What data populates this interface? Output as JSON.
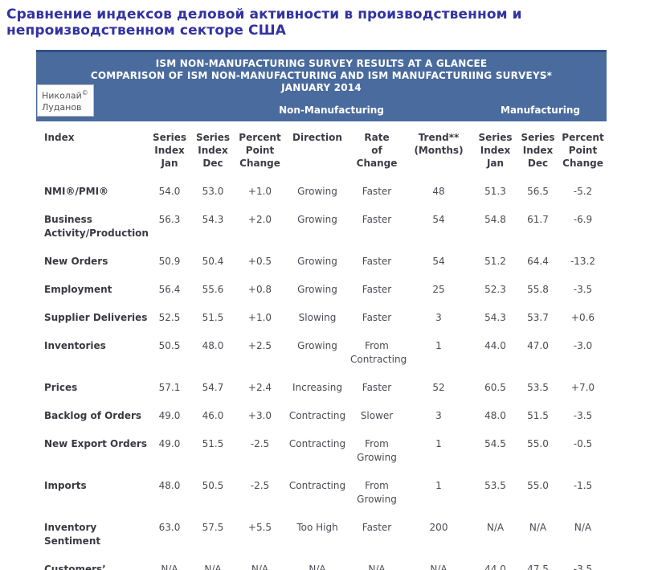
{
  "page_title": "Сравнение индексов деловой активности в производственном и непроизводственном секторе США",
  "band": {
    "background": "#4a6b9d",
    "line1": "ISM NON-MANUFACTURING SURVEY RESULTS AT A GLANCEE",
    "line2": "COMPARISON OF ISM NON-MANUFACTURING AND ISM MANUFACTURIING SURVEYS*",
    "line3": "JANUARY 2014",
    "group_left": "Non-Manufacturing",
    "group_right": "Manufacturing"
  },
  "watermark": {
    "name_line1": "Николай",
    "copyright": "©",
    "name_line2": "Луданов"
  },
  "table": {
    "column_headers": [
      "Index",
      "Series\nIndex\nJan",
      "Series\nIndex\nDec",
      "Percent\nPoint\nChange",
      "Direction",
      "Rate\nof\nChange",
      "Trend**\n(Months)",
      "Series\nIndex\nJan",
      "Series\nIndex\nDec",
      "Percent\nPoint\nChange"
    ],
    "rows": [
      {
        "index": "NMI®/PMI®",
        "nm_jan": "54.0",
        "nm_dec": "53.0",
        "nm_ppc": "+1.0",
        "direction": "Growing",
        "rate": "Faster",
        "trend": "48",
        "m_jan": "51.3",
        "m_dec": "56.5",
        "m_ppc": "-5.2"
      },
      {
        "index": "Business\nActivity/Production",
        "nm_jan": "56.3",
        "nm_dec": "54.3",
        "nm_ppc": "+2.0",
        "direction": "Growing",
        "rate": "Faster",
        "trend": "54",
        "m_jan": "54.8",
        "m_dec": "61.7",
        "m_ppc": "-6.9"
      },
      {
        "index": "New Orders",
        "nm_jan": "50.9",
        "nm_dec": "50.4",
        "nm_ppc": "+0.5",
        "direction": "Growing",
        "rate": "Faster",
        "trend": "54",
        "m_jan": "51.2",
        "m_dec": "64.4",
        "m_ppc": "-13.2"
      },
      {
        "index": "Employment",
        "nm_jan": "56.4",
        "nm_dec": "55.6",
        "nm_ppc": "+0.8",
        "direction": "Growing",
        "rate": "Faster",
        "trend": "25",
        "m_jan": "52.3",
        "m_dec": "55.8",
        "m_ppc": "-3.5"
      },
      {
        "index": "Supplier Deliveries",
        "nm_jan": "52.5",
        "nm_dec": "51.5",
        "nm_ppc": "+1.0",
        "direction": "Slowing",
        "rate": "Faster",
        "trend": "3",
        "m_jan": "54.3",
        "m_dec": "53.7",
        "m_ppc": "+0.6"
      },
      {
        "index": "Inventories",
        "nm_jan": "50.5",
        "nm_dec": "48.0",
        "nm_ppc": "+2.5",
        "direction": "Growing",
        "rate": "From\nContracting",
        "trend": "1",
        "m_jan": "44.0",
        "m_dec": "47.0",
        "m_ppc": "-3.0"
      },
      {
        "index": "Prices",
        "nm_jan": "57.1",
        "nm_dec": "54.7",
        "nm_ppc": "+2.4",
        "direction": "Increasing",
        "rate": "Faster",
        "trend": "52",
        "m_jan": "60.5",
        "m_dec": "53.5",
        "m_ppc": "+7.0"
      },
      {
        "index": "Backlog of Orders",
        "nm_jan": "49.0",
        "nm_dec": "46.0",
        "nm_ppc": "+3.0",
        "direction": "Contracting",
        "rate": "Slower",
        "trend": "3",
        "m_jan": "48.0",
        "m_dec": "51.5",
        "m_ppc": "-3.5"
      },
      {
        "index": "New Export Orders",
        "nm_jan": "49.0",
        "nm_dec": "51.5",
        "nm_ppc": "-2.5",
        "direction": "Contracting",
        "rate": "From\nGrowing",
        "trend": "1",
        "m_jan": "54.5",
        "m_dec": "55.0",
        "m_ppc": "-0.5"
      },
      {
        "index": "Imports",
        "nm_jan": "48.0",
        "nm_dec": "50.5",
        "nm_ppc": "-2.5",
        "direction": "Contracting",
        "rate": "From\nGrowing",
        "trend": "1",
        "m_jan": "53.5",
        "m_dec": "55.0",
        "m_ppc": "-1.5"
      },
      {
        "index": "Inventory\nSentiment",
        "nm_jan": "63.0",
        "nm_dec": "57.5",
        "nm_ppc": "+5.5",
        "direction": "Too High",
        "rate": "Faster",
        "trend": "200",
        "m_jan": "N/A",
        "m_dec": "N/A",
        "m_ppc": "N/A"
      },
      {
        "index": "Customers’\nInventories",
        "nm_jan": "N/A",
        "nm_dec": "N/A",
        "nm_ppc": "N/A",
        "direction": "N/A",
        "rate": "N/A",
        "trend": "N/A",
        "m_jan": "44.0",
        "m_dec": "47.5",
        "m_ppc": "-3.5"
      }
    ]
  }
}
